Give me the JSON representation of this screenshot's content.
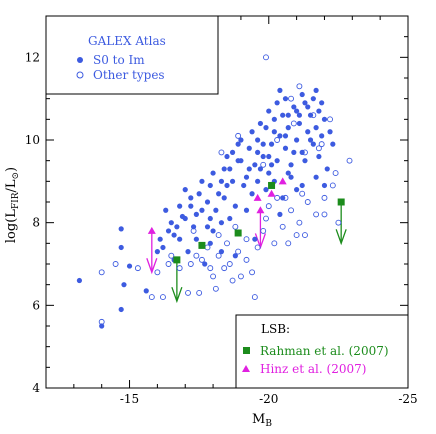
{
  "chart_data": {
    "type": "scatter",
    "title": "",
    "xlabel": "M",
    "xlabel_sub": "B",
    "ylabel_parts": [
      "log(L",
      "FIR",
      "/L",
      "⊙",
      ")"
    ],
    "xlim": [
      -12,
      -25
    ],
    "ylim": [
      4,
      13
    ],
    "x_reversed": true,
    "xticks": [
      -15,
      -20,
      -25
    ],
    "yticks": [
      4,
      6,
      8,
      10,
      12
    ],
    "grid": false,
    "legend_upper": {
      "title": "GALEX Atlas",
      "entries": [
        {
          "label": "S0 to Im",
          "marker": "filled-circle"
        },
        {
          "label": "Other types",
          "marker": "open-circle"
        }
      ],
      "placement": "top-left"
    },
    "legend_lower": {
      "title": "LSB:",
      "entries": [
        {
          "label": "Rahman et al. (2007)",
          "marker": "filled-square",
          "color": "#1c8c1c"
        },
        {
          "label": "Hinz et al. (2007)",
          "marker": "filled-triangle",
          "color": "#e020e0"
        }
      ],
      "placement": "bottom-right"
    },
    "colors": {
      "galex": "#3d5be0",
      "rahman": "#1c8c1c",
      "hinz": "#e020e0",
      "axis": "#000000"
    },
    "series": [
      {
        "name": "S0 to Im",
        "marker": "filled-circle",
        "points": [
          [
            -13.2,
            6.6
          ],
          [
            -14.0,
            5.5
          ],
          [
            -14.7,
            5.9
          ],
          [
            -14.8,
            6.5
          ],
          [
            -15.0,
            6.95
          ],
          [
            -14.7,
            7.4
          ],
          [
            -14.7,
            7.85
          ],
          [
            -15.6,
            6.35
          ],
          [
            -16.6,
            7.1
          ],
          [
            -16.0,
            7.3
          ],
          [
            -16.2,
            7.4
          ],
          [
            -16.8,
            7.6
          ],
          [
            -16.7,
            7.9
          ],
          [
            -16.4,
            7.8
          ],
          [
            -16.9,
            8.15
          ],
          [
            -17.2,
            8.4
          ],
          [
            -17.0,
            8.1
          ],
          [
            -17.3,
            7.9
          ],
          [
            -17.6,
            8.3
          ],
          [
            -17.5,
            8.7
          ],
          [
            -17.8,
            8.5
          ],
          [
            -17.9,
            8.9
          ],
          [
            -18.0,
            9.2
          ],
          [
            -18.2,
            8.7
          ],
          [
            -18.3,
            9.0
          ],
          [
            -18.4,
            8.6
          ],
          [
            -18.6,
            9.3
          ],
          [
            -18.5,
            9.6
          ],
          [
            -18.1,
            8.3
          ],
          [
            -17.4,
            7.6
          ],
          [
            -17.8,
            7.9
          ],
          [
            -18.7,
            9.0
          ],
          [
            -18.8,
            8.4
          ],
          [
            -19.0,
            9.5
          ],
          [
            -19.2,
            9.1
          ],
          [
            -19.3,
            9.8
          ],
          [
            -19.4,
            8.7
          ],
          [
            -19.5,
            9.4
          ],
          [
            -19.6,
            10.0
          ],
          [
            -19.8,
            9.6
          ],
          [
            -19.9,
            10.3
          ],
          [
            -20.0,
            9.2
          ],
          [
            -20.1,
            9.9
          ],
          [
            -20.2,
            10.5
          ],
          [
            -20.3,
            9.5
          ],
          [
            -20.4,
            10.1
          ],
          [
            -20.5,
            10.6
          ],
          [
            -20.6,
            9.8
          ],
          [
            -20.7,
            10.3
          ],
          [
            -20.8,
            9.4
          ],
          [
            -20.9,
            10.8
          ],
          [
            -21.0,
            10.0
          ],
          [
            -21.1,
            10.4
          ],
          [
            -21.2,
            9.7
          ],
          [
            -21.3,
            10.9
          ],
          [
            -21.4,
            10.2
          ],
          [
            -21.5,
            10.6
          ],
          [
            -21.6,
            9.9
          ],
          [
            -21.7,
            10.3
          ],
          [
            -21.8,
            10.7
          ],
          [
            -21.9,
            10.1
          ],
          [
            -22.0,
            10.5
          ],
          [
            -21.2,
            11.1
          ],
          [
            -20.6,
            11.0
          ],
          [
            -21.8,
            9.6
          ],
          [
            -22.1,
            9.3
          ],
          [
            -22.3,
            9.9
          ],
          [
            -19.6,
            9.0
          ],
          [
            -19.9,
            8.8
          ],
          [
            -20.2,
            9.0
          ],
          [
            -20.5,
            8.6
          ],
          [
            -20.8,
            9.1
          ],
          [
            -21.0,
            8.8
          ],
          [
            -19.1,
            8.9
          ],
          [
            -18.9,
            9.9
          ],
          [
            -19.7,
            10.4
          ],
          [
            -20.0,
            10.7
          ],
          [
            -20.3,
            10.9
          ],
          [
            -20.7,
            10.6
          ],
          [
            -21.1,
            10.6
          ],
          [
            -21.5,
            10.0
          ],
          [
            -21.6,
            11.0
          ],
          [
            -19.4,
            10.2
          ],
          [
            -18.6,
            8.1
          ],
          [
            -18.3,
            8.0
          ],
          [
            -17.9,
            7.5
          ],
          [
            -17.1,
            7.3
          ],
          [
            -16.5,
            8.0
          ],
          [
            -17.6,
            9.0
          ],
          [
            -18.9,
            9.5
          ],
          [
            -19.7,
            9.3
          ],
          [
            -20.0,
            9.6
          ],
          [
            -20.9,
            9.7
          ],
          [
            -21.3,
            9.5
          ],
          [
            -21.7,
            9.1
          ],
          [
            -22.0,
            8.9
          ],
          [
            -19.2,
            8.3
          ],
          [
            -18.8,
            7.2
          ],
          [
            -18.3,
            7.3
          ],
          [
            -17.7,
            7.0
          ],
          [
            -19.5,
            7.6
          ],
          [
            -20.4,
            8.2
          ],
          [
            -17.0,
            8.8
          ],
          [
            -16.3,
            8.3
          ],
          [
            -18.0,
            7.8
          ],
          [
            -19.3,
            9.3
          ],
          [
            -19.8,
            9.9
          ],
          [
            -20.2,
            10.2
          ],
          [
            -20.6,
            10.1
          ],
          [
            -21.0,
            10.7
          ],
          [
            -21.4,
            10.8
          ],
          [
            -20.1,
            9.4
          ],
          [
            -19.6,
            9.7
          ],
          [
            -18.7,
            9.7
          ],
          [
            -18.4,
            9.3
          ],
          [
            -17.2,
            8.6
          ],
          [
            -16.8,
            8.4
          ],
          [
            -16.1,
            7.6
          ],
          [
            -21.9,
            10.9
          ],
          [
            -22.2,
            10.2
          ],
          [
            -20.4,
            11.2
          ],
          [
            -21.7,
            11.2
          ],
          [
            -19.0,
            10.0
          ],
          [
            -17.9,
            8.1
          ],
          [
            -18.5,
            8.9
          ],
          [
            -20.7,
            9.2
          ],
          [
            -21.2,
            8.9
          ],
          [
            -17.4,
            8.2
          ],
          [
            -16.6,
            7.7
          ]
        ]
      },
      {
        "name": "Other types",
        "marker": "open-circle",
        "points": [
          [
            -14.0,
            5.6
          ],
          [
            -15.8,
            6.2
          ],
          [
            -16.2,
            6.2
          ],
          [
            -16.0,
            6.8
          ],
          [
            -15.3,
            6.9
          ],
          [
            -14.0,
            6.8
          ],
          [
            -14.5,
            7.0
          ],
          [
            -16.5,
            7.2
          ],
          [
            -17.2,
            7.0
          ],
          [
            -17.8,
            7.4
          ],
          [
            -18.2,
            7.2
          ],
          [
            -18.6,
            7.0
          ],
          [
            -18.9,
            7.3
          ],
          [
            -19.2,
            7.1
          ],
          [
            -19.6,
            7.4
          ],
          [
            -19.8,
            7.8
          ],
          [
            -20.2,
            7.5
          ],
          [
            -20.5,
            7.9
          ],
          [
            -20.8,
            8.3
          ],
          [
            -21.1,
            8.0
          ],
          [
            -21.4,
            8.5
          ],
          [
            -21.7,
            8.2
          ],
          [
            -22.0,
            8.6
          ],
          [
            -22.3,
            8.9
          ],
          [
            -22.9,
            9.5
          ],
          [
            -22.5,
            8.0
          ],
          [
            -21.0,
            7.7
          ],
          [
            -20.3,
            8.6
          ],
          [
            -19.9,
            8.1
          ],
          [
            -18.8,
            7.9
          ],
          [
            -18.4,
            6.9
          ],
          [
            -18.0,
            6.7
          ],
          [
            -18.7,
            6.6
          ],
          [
            -19.4,
            6.8
          ],
          [
            -17.5,
            6.3
          ],
          [
            -19.9,
            12.0
          ],
          [
            -18.3,
            9.7
          ],
          [
            -21.1,
            11.3
          ],
          [
            -21.6,
            10.6
          ],
          [
            -22.2,
            10.5
          ],
          [
            -20.9,
            10.4
          ],
          [
            -21.8,
            9.8
          ],
          [
            -17.1,
            6.3
          ],
          [
            -17.4,
            7.2
          ],
          [
            -16.8,
            6.9
          ],
          [
            -19.5,
            6.2
          ],
          [
            -18.5,
            7.5
          ],
          [
            -20.7,
            7.5
          ],
          [
            -21.3,
            7.7
          ],
          [
            -17.3,
            7.8
          ],
          [
            -16.4,
            7.0
          ],
          [
            -21.2,
            8.7
          ],
          [
            -20.0,
            8.4
          ],
          [
            -20.6,
            8.6
          ],
          [
            -22.0,
            8.2
          ],
          [
            -19.2,
            7.6
          ],
          [
            -17.9,
            6.9
          ],
          [
            -18.1,
            6.4
          ],
          [
            -19.8,
            9.4
          ],
          [
            -20.3,
            10.0
          ],
          [
            -21.3,
            9.7
          ],
          [
            -18.9,
            10.1
          ],
          [
            -20.8,
            11.0
          ],
          [
            -21.9,
            9.9
          ],
          [
            -22.4,
            9.2
          ],
          [
            -17.6,
            7.1
          ],
          [
            -18.2,
            7.7
          ],
          [
            -19.0,
            6.7
          ]
        ]
      },
      {
        "name": "Rahman et al. (2007)",
        "marker": "filled-square",
        "points": [
          [
            -16.7,
            7.1
          ],
          [
            -17.6,
            7.45
          ],
          [
            -18.9,
            7.75
          ],
          [
            -20.1,
            8.9
          ],
          [
            -22.6,
            8.5
          ]
        ]
      },
      {
        "name": "Hinz et al. (2007)",
        "marker": "filled-triangle",
        "points": [
          [
            -15.8,
            7.8
          ],
          [
            -19.7,
            8.3
          ],
          [
            -19.6,
            8.6
          ],
          [
            -20.1,
            8.7
          ],
          [
            -20.5,
            9.0
          ]
        ]
      }
    ],
    "upper_limit_arrows": [
      {
        "series": "Rahman et al. (2007)",
        "x": -16.7,
        "y_from": 7.1,
        "y_to": 6.1
      },
      {
        "series": "Rahman et al. (2007)",
        "x": -22.6,
        "y_from": 8.5,
        "y_to": 7.5
      },
      {
        "series": "Hinz et al. (2007)",
        "x": -15.8,
        "y_from": 7.8,
        "y_to": 6.8
      },
      {
        "series": "Hinz et al. (2007)",
        "x": -19.7,
        "y_from": 8.3,
        "y_to": 7.4
      }
    ]
  }
}
